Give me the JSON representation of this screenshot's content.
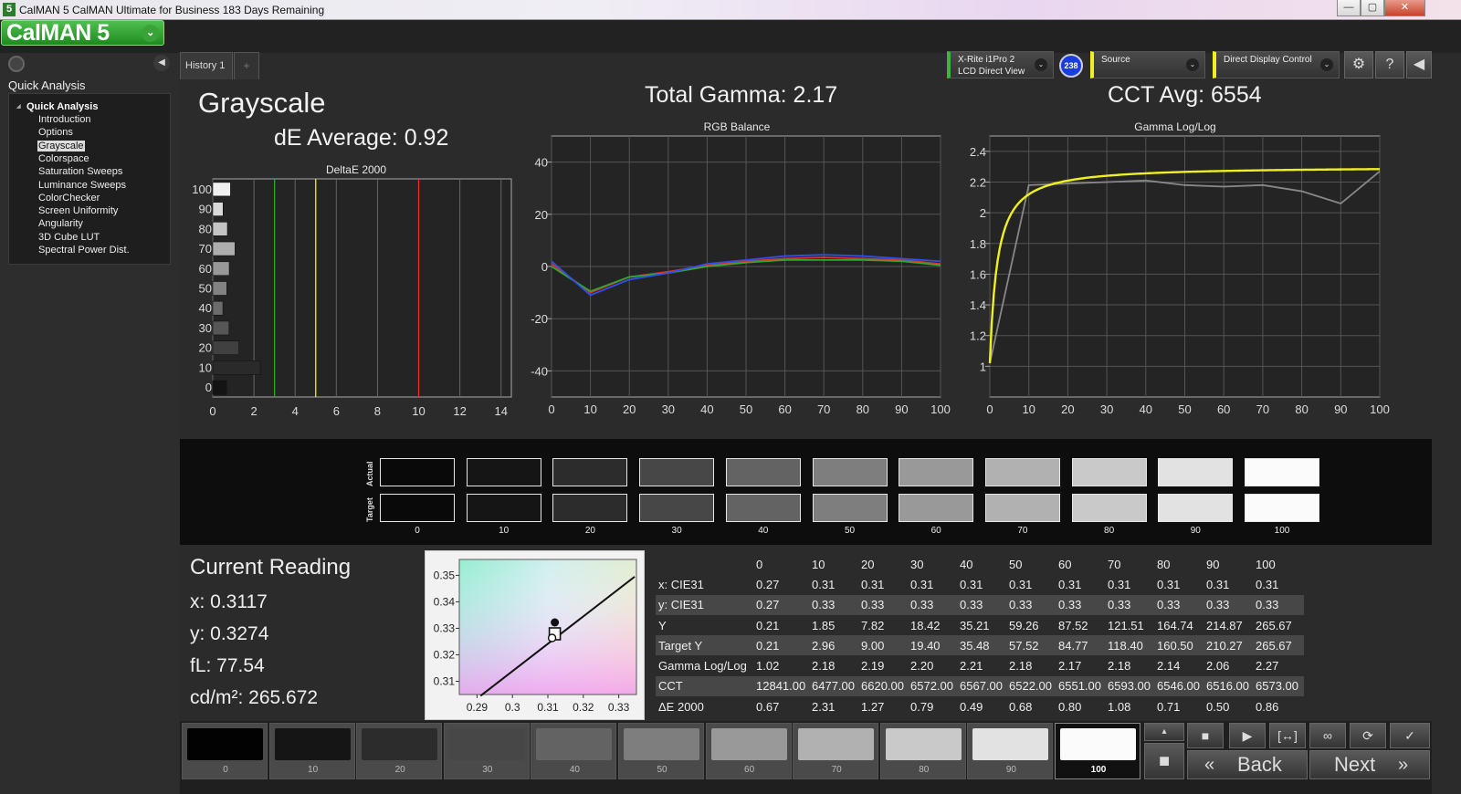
{
  "window": {
    "title": "CalMAN 5 CalMAN Ultimate for Business 183 Days Remaining",
    "small_logo": "5",
    "min_icon": "minimize-icon",
    "max_icon": "maximize-icon",
    "close_icon": "close-icon",
    "min": "—",
    "max": "▢",
    "close": "✕"
  },
  "app": {
    "logo": "CalMAN 5",
    "logo_arrow": "⌄"
  },
  "sidebar": {
    "heading": "Quick Analysis",
    "collapse": "◀",
    "root": "Quick Analysis",
    "items": [
      "Introduction",
      "Options",
      "Grayscale",
      "Colorspace",
      "Saturation Sweeps",
      "Luminance Sweeps",
      "ColorChecker",
      "Screen Uniformity",
      "Angularity",
      "3D Cube LUT",
      "Spectral Power Dist."
    ],
    "selected": "Grayscale"
  },
  "tabs": {
    "history": "History 1",
    "add": "+"
  },
  "devices": {
    "meter_line1": "X-Rite i1Pro 2",
    "meter_line2": "LCD Direct View",
    "meter_badge": "238",
    "source": "Source",
    "display": "Direct Display Control",
    "dropdown": "⌄",
    "settings_icon": "⚙",
    "help_icon": "?",
    "collapse_icon": "◀"
  },
  "header": {
    "title": "Grayscale",
    "de_average": "dE Average: 0.92",
    "total_gamma": "Total Gamma: 2.17",
    "cct_avg": "CCT Avg: 6554"
  },
  "colors": {
    "red": "#e03030",
    "green": "#2fa82f",
    "blue": "#2f4fe8",
    "yellow": "#f0f020",
    "gray_line": "#888888",
    "accent_green": "#3cb53c"
  },
  "chart_data": [
    {
      "type": "bar",
      "title": "DeltaE 2000",
      "orientation": "horizontal",
      "categories": [
        "100",
        "90",
        "80",
        "70",
        "60",
        "50",
        "40",
        "30",
        "20",
        "10",
        "0"
      ],
      "values": [
        0.86,
        0.5,
        0.71,
        1.08,
        0.8,
        0.68,
        0.49,
        0.79,
        1.27,
        2.31,
        0.67
      ],
      "xlim": [
        0,
        14.5
      ],
      "xticks": [
        0,
        2,
        4,
        6,
        8,
        10,
        12,
        14
      ],
      "threshold_lines": [
        {
          "x": 3,
          "color": "green"
        },
        {
          "x": 5,
          "color": "yellow"
        },
        {
          "x": 10,
          "color": "red"
        }
      ]
    },
    {
      "type": "line",
      "title": "RGB Balance",
      "x": [
        0,
        10,
        20,
        30,
        40,
        50,
        60,
        70,
        80,
        90,
        100
      ],
      "ylim": [
        -50,
        50
      ],
      "yticks": [
        -40,
        -20,
        0,
        20,
        40
      ],
      "xticks": [
        0,
        10,
        20,
        30,
        40,
        50,
        60,
        70,
        80,
        90,
        100
      ],
      "series": [
        {
          "color": "red",
          "values": [
            1,
            -10,
            -4,
            -2,
            0.5,
            2,
            3,
            3.5,
            3,
            2.5,
            1
          ]
        },
        {
          "color": "green",
          "values": [
            0,
            -9.5,
            -4,
            -2.5,
            0,
            1.5,
            2.5,
            2.5,
            2.5,
            2,
            0.5
          ]
        },
        {
          "color": "blue",
          "values": [
            2,
            -11,
            -5,
            -2.5,
            1,
            2.5,
            4,
            4.5,
            4,
            3,
            2
          ]
        }
      ]
    },
    {
      "type": "line",
      "title": "Gamma Log/Log",
      "x": [
        0,
        10,
        20,
        30,
        40,
        50,
        60,
        70,
        80,
        90,
        100
      ],
      "ylim": [
        0.8,
        2.5
      ],
      "yticks": [
        1,
        1.2,
        1.4,
        1.6,
        1.8,
        2,
        2.2,
        2.4
      ],
      "xticks": [
        0,
        10,
        20,
        30,
        40,
        50,
        60,
        70,
        80,
        90,
        100
      ],
      "series": [
        {
          "color": "gray",
          "values": [
            1.02,
            2.18,
            2.19,
            2.2,
            2.21,
            2.18,
            2.17,
            2.18,
            2.14,
            2.06,
            2.27
          ]
        },
        {
          "color": "yellow",
          "target_gamma": 2.3
        }
      ]
    },
    {
      "type": "scatter",
      "title": "",
      "xlim": [
        0.285,
        0.335
      ],
      "ylim": [
        0.305,
        0.356
      ],
      "xticks": [
        0.29,
        0.3,
        0.31,
        0.32,
        0.33
      ],
      "yticks": [
        0.31,
        0.32,
        0.33,
        0.34,
        0.35
      ],
      "points": [
        {
          "x": 0.3117,
          "y": 0.3274
        }
      ]
    }
  ],
  "swatches": {
    "actual_label": "Actual",
    "target_label": "Target",
    "levels": [
      "0",
      "10",
      "20",
      "30",
      "40",
      "50",
      "60",
      "70",
      "80",
      "90",
      "100"
    ],
    "grays": [
      "#090909",
      "#151515",
      "#2c2c2c",
      "#474747",
      "#636363",
      "#7e7e7e",
      "#999999",
      "#b1b1b1",
      "#c9c9c9",
      "#e2e2e2",
      "#fbfbfb"
    ]
  },
  "reading": {
    "title": "Current Reading",
    "x": "x: 0.3117",
    "y": "y: 0.3274",
    "fl": "fL: 77.54",
    "cd": "cd/m²: 265.672"
  },
  "table": {
    "headers": [
      "",
      "0",
      "10",
      "20",
      "30",
      "40",
      "50",
      "60",
      "70",
      "80",
      "90",
      "100"
    ],
    "rows": [
      [
        "x: CIE31",
        "0.27",
        "0.31",
        "0.31",
        "0.31",
        "0.31",
        "0.31",
        "0.31",
        "0.31",
        "0.31",
        "0.31",
        "0.31"
      ],
      [
        "y: CIE31",
        "0.27",
        "0.33",
        "0.33",
        "0.33",
        "0.33",
        "0.33",
        "0.33",
        "0.33",
        "0.33",
        "0.33",
        "0.33"
      ],
      [
        "Y",
        "0.21",
        "1.85",
        "7.82",
        "18.42",
        "35.21",
        "59.26",
        "87.52",
        "121.51",
        "164.74",
        "214.87",
        "265.67"
      ],
      [
        "Target Y",
        "0.21",
        "2.96",
        "9.00",
        "19.40",
        "35.48",
        "57.52",
        "84.77",
        "118.40",
        "160.50",
        "210.27",
        "265.67"
      ],
      [
        "Gamma Log/Log",
        "1.02",
        "2.18",
        "2.19",
        "2.20",
        "2.21",
        "2.18",
        "2.17",
        "2.18",
        "2.14",
        "2.06",
        "2.27"
      ],
      [
        "CCT",
        "12841.00",
        "6477.00",
        "6620.00",
        "6572.00",
        "6567.00",
        "6522.00",
        "6551.00",
        "6593.00",
        "6546.00",
        "6516.00",
        "6573.00"
      ],
      [
        "ΔE 2000",
        "0.67",
        "2.31",
        "1.27",
        "0.79",
        "0.49",
        "0.68",
        "0.80",
        "1.08",
        "0.71",
        "0.50",
        "0.86"
      ]
    ]
  },
  "bottom": {
    "levels": [
      "0",
      "10",
      "20",
      "30",
      "40",
      "50",
      "60",
      "70",
      "80",
      "90",
      "100"
    ],
    "active": "100",
    "controls": {
      "stop_icon": "■",
      "play_icon": "▶",
      "range_icon": "[↔]",
      "loop_icon": "∞",
      "refresh_icon": "⟳",
      "check_icon": "✓",
      "record_icon": "■",
      "eject_icon": "▴"
    },
    "back": "Back",
    "next": "Next",
    "back_icon": "«",
    "next_icon": "»"
  }
}
